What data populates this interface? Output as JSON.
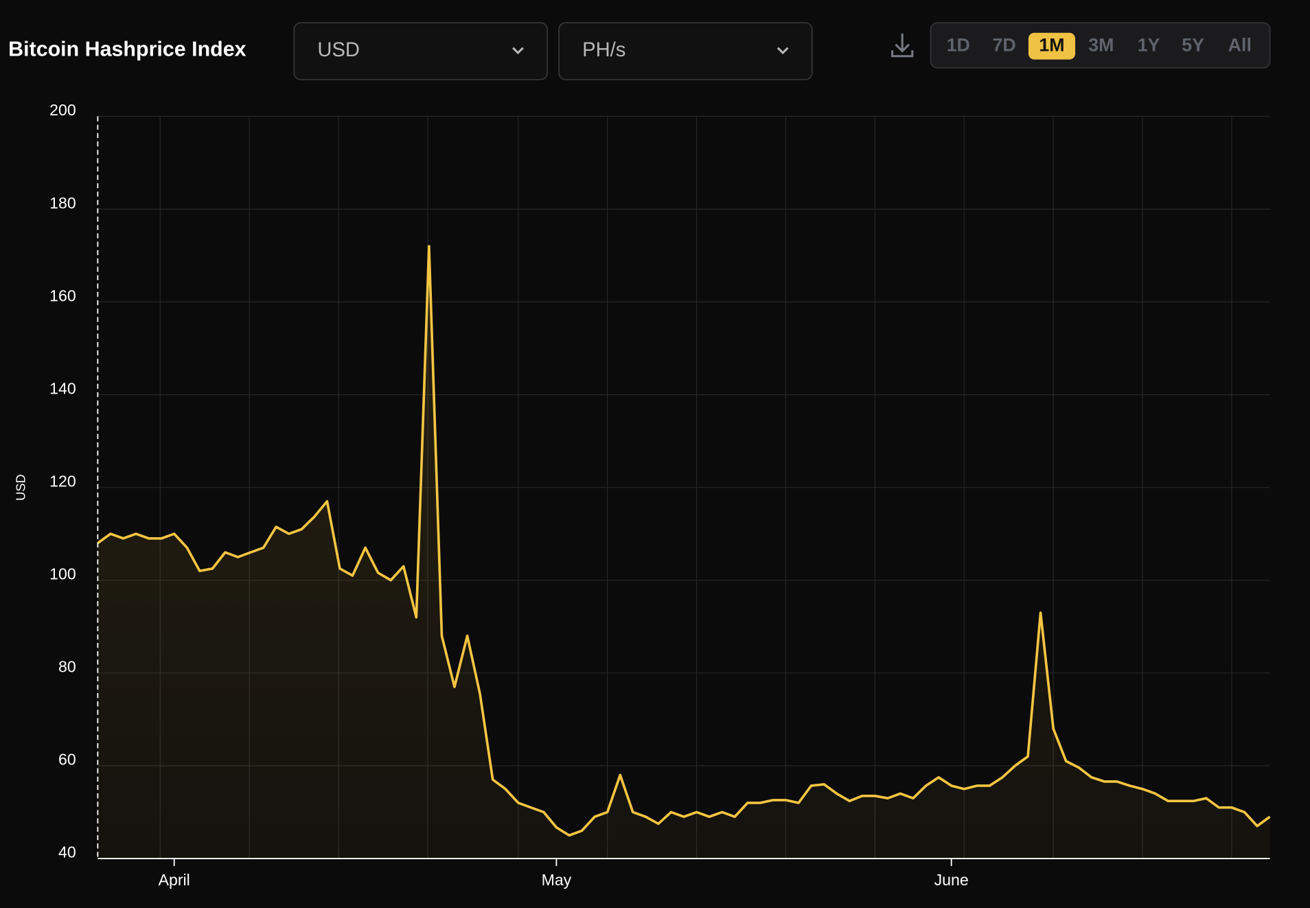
{
  "header": {
    "title": "Bitcoin Hashprice Index",
    "currency": "USD",
    "unit": "PH/s",
    "ranges": [
      "1D",
      "7D",
      "1M",
      "3M",
      "1Y",
      "5Y",
      "All"
    ],
    "active_range": "1M"
  },
  "chart_data": {
    "type": "line",
    "ylabel": "USD",
    "color": "#f5c542",
    "ylim": [
      40,
      200
    ],
    "yticks": [
      40,
      60,
      80,
      100,
      120,
      140,
      160,
      180,
      200
    ],
    "xlim": [
      0,
      92
    ],
    "xticks": [
      {
        "value": 6,
        "label": "April"
      },
      {
        "value": 36,
        "label": "May"
      },
      {
        "value": 67,
        "label": "June"
      }
    ],
    "xgrid": [
      4.9,
      11.9,
      18.9,
      25.9,
      33,
      40,
      47,
      54,
      61,
      68,
      75,
      82,
      89
    ],
    "grid": true,
    "values": [
      108,
      110,
      109,
      110,
      109,
      109,
      110,
      107,
      102,
      102.5,
      106,
      105,
      106,
      107,
      111.5,
      110,
      111,
      113.7,
      117,
      102.5,
      101,
      107,
      101.6,
      100,
      103,
      92,
      172,
      88,
      77,
      88,
      75.5,
      57,
      55,
      52,
      51,
      50,
      46.7,
      45,
      46,
      49,
      50,
      58,
      50,
      49,
      47.5,
      50,
      49,
      50,
      49,
      50,
      49,
      52,
      52,
      52.6,
      52.6,
      52,
      55.7,
      56,
      54,
      52.4,
      53.5,
      53.5,
      53,
      54,
      53,
      55.7,
      57.5,
      55.7,
      55,
      55.7,
      55.7,
      57.5,
      60,
      62,
      93,
      68,
      61,
      59.6,
      57.5,
      56.6,
      56.6,
      55.7,
      55,
      54,
      52.4,
      52.4,
      52.4,
      53,
      51,
      51,
      50,
      47,
      49
    ]
  }
}
